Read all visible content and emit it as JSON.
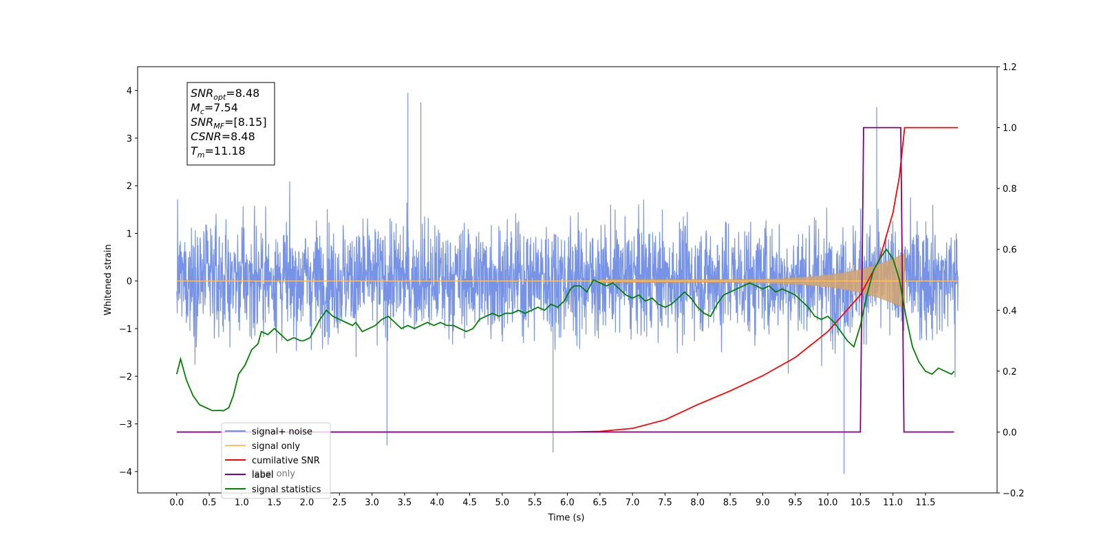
{
  "chart_data": {
    "type": "line",
    "xlabel": "Time (s)",
    "ylabel": "Whitened strain",
    "xlim": [
      -0.6,
      12.6
    ],
    "ylim": [
      -4.45,
      4.5
    ],
    "y2lim": [
      -0.2,
      1.2
    ],
    "x_ticks": [
      "0.0",
      "0.5",
      "1.0",
      "1.5",
      "2.0",
      "2.5",
      "3.0",
      "3.5",
      "4.0",
      "4.5",
      "5.0",
      "5.5",
      "6.0",
      "6.5",
      "7.0",
      "7.5",
      "8.0",
      "8.5",
      "9.0",
      "9.5",
      "10.0",
      "10.5",
      "11.0",
      "11.5"
    ],
    "y_ticks": [
      "−4",
      "−3",
      "−2",
      "−1",
      "0",
      "1",
      "2",
      "3",
      "4"
    ],
    "y2_ticks": [
      "−0.2",
      "0.0",
      "0.2",
      "0.4",
      "0.6",
      "0.8",
      "1.0",
      "1.2"
    ],
    "annotation": {
      "lines": [
        {
          "base": "SNR",
          "sub": "opt",
          "rest": "=8.48"
        },
        {
          "base": "M",
          "sub": "c",
          "rest": "=7.54"
        },
        {
          "base": "SNR",
          "sub": "MF",
          "rest": "=[8.15]"
        },
        {
          "base": "CSNR",
          "sub": "",
          "rest": "=8.48"
        },
        {
          "base": "T",
          "sub": "m",
          "rest": "=11.18"
        }
      ]
    },
    "legend": {
      "placement": "lower-left",
      "entries": [
        {
          "label": "signal+ noise",
          "color": "#6f8de6"
        },
        {
          "label": "signal only",
          "color": "#ffbf60"
        },
        {
          "label": "cumilative SNR",
          "color": "#ff0000"
        },
        {
          "label": "label",
          "color": "#800080"
        },
        {
          "label": "signal statistics",
          "color": "#008000"
        }
      ],
      "overlapped_text": "label only"
    },
    "noise_series": {
      "name": "signal+ noise",
      "color": "#6f8de6",
      "x_range": [
        0.0,
        12.0
      ],
      "typical_range": [
        -2.0,
        2.2
      ],
      "peaks": [
        {
          "x": 3.55,
          "y": 3.95
        },
        {
          "x": 3.75,
          "y": 3.75
        },
        {
          "x": 10.75,
          "y": 3.65
        },
        {
          "x": 10.25,
          "y": -4.05
        },
        {
          "x": 5.78,
          "y": -3.6
        },
        {
          "x": 3.23,
          "y": -3.45
        }
      ]
    },
    "signal_series": {
      "name": "signal only",
      "color": "#ffbf60",
      "chirp_start": 6.5,
      "merger": 11.18,
      "peak_amplitude": 0.58
    },
    "cumulative_snr": {
      "name": "cumilative SNR",
      "color": "#ff0000",
      "axis": "right",
      "x": [
        0.0,
        6.0,
        6.5,
        7.0,
        7.5,
        8.0,
        8.5,
        9.0,
        9.5,
        10.0,
        10.5,
        10.8,
        11.0,
        11.1,
        11.18,
        12.0
      ],
      "y": [
        0.0,
        0.0,
        0.002,
        0.012,
        0.04,
        0.09,
        0.135,
        0.185,
        0.245,
        0.33,
        0.45,
        0.57,
        0.72,
        0.84,
        1.0,
        1.0
      ]
    },
    "label_series": {
      "name": "label",
      "color": "#800080",
      "axis": "right",
      "x": [
        0.0,
        10.5,
        10.55,
        11.12,
        11.17,
        11.94
      ],
      "y": [
        0.0,
        0.0,
        1.0,
        1.0,
        0.0,
        0.0
      ]
    },
    "statistics_series": {
      "name": "signal statistics",
      "color": "#008000",
      "axis": "right",
      "x": [
        0.0,
        0.06,
        0.15,
        0.25,
        0.35,
        0.45,
        0.55,
        0.65,
        0.72,
        0.8,
        0.87,
        0.95,
        1.05,
        1.15,
        1.25,
        1.3,
        1.4,
        1.5,
        1.6,
        1.7,
        1.8,
        1.9,
        1.95,
        2.05,
        2.15,
        2.2,
        2.3,
        2.4,
        2.5,
        2.6,
        2.7,
        2.75,
        2.85,
        2.95,
        3.05,
        3.15,
        3.25,
        3.35,
        3.45,
        3.55,
        3.65,
        3.75,
        3.85,
        3.95,
        4.05,
        4.15,
        4.25,
        4.35,
        4.45,
        4.55,
        4.65,
        4.75,
        4.85,
        4.95,
        5.05,
        5.15,
        5.25,
        5.35,
        5.45,
        5.55,
        5.65,
        5.75,
        5.85,
        5.95,
        6.05,
        6.1,
        6.2,
        6.3,
        6.4,
        6.5,
        6.6,
        6.7,
        6.8,
        6.9,
        7.0,
        7.1,
        7.2,
        7.3,
        7.4,
        7.5,
        7.6,
        7.7,
        7.8,
        7.9,
        8.0,
        8.1,
        8.2,
        8.3,
        8.4,
        8.5,
        8.6,
        8.7,
        8.8,
        8.9,
        9.0,
        9.1,
        9.2,
        9.3,
        9.4,
        9.5,
        9.6,
        9.7,
        9.8,
        9.9,
        10.0,
        10.1,
        10.2,
        10.3,
        10.4,
        10.5,
        10.6,
        10.7,
        10.8,
        10.9,
        11.0,
        11.1,
        11.2,
        11.3,
        11.4,
        11.5,
        11.6,
        11.7,
        11.8,
        11.9,
        11.94
      ],
      "y": [
        0.19,
        0.24,
        0.17,
        0.12,
        0.09,
        0.08,
        0.07,
        0.071,
        0.07,
        0.08,
        0.12,
        0.19,
        0.22,
        0.27,
        0.29,
        0.33,
        0.32,
        0.34,
        0.32,
        0.3,
        0.31,
        0.3,
        0.3,
        0.31,
        0.35,
        0.37,
        0.4,
        0.38,
        0.37,
        0.36,
        0.35,
        0.36,
        0.33,
        0.34,
        0.35,
        0.37,
        0.38,
        0.36,
        0.34,
        0.35,
        0.34,
        0.35,
        0.36,
        0.35,
        0.36,
        0.35,
        0.35,
        0.34,
        0.33,
        0.34,
        0.37,
        0.38,
        0.39,
        0.38,
        0.39,
        0.39,
        0.4,
        0.39,
        0.4,
        0.41,
        0.4,
        0.42,
        0.41,
        0.43,
        0.47,
        0.48,
        0.48,
        0.46,
        0.5,
        0.49,
        0.48,
        0.49,
        0.47,
        0.45,
        0.44,
        0.45,
        0.43,
        0.44,
        0.42,
        0.41,
        0.42,
        0.44,
        0.46,
        0.44,
        0.41,
        0.39,
        0.38,
        0.42,
        0.45,
        0.46,
        0.47,
        0.48,
        0.49,
        0.48,
        0.47,
        0.48,
        0.46,
        0.47,
        0.46,
        0.45,
        0.43,
        0.41,
        0.38,
        0.37,
        0.38,
        0.36,
        0.33,
        0.3,
        0.28,
        0.35,
        0.45,
        0.53,
        0.57,
        0.6,
        0.57,
        0.5,
        0.38,
        0.28,
        0.23,
        0.2,
        0.19,
        0.21,
        0.2,
        0.19,
        0.2
      ]
    }
  }
}
